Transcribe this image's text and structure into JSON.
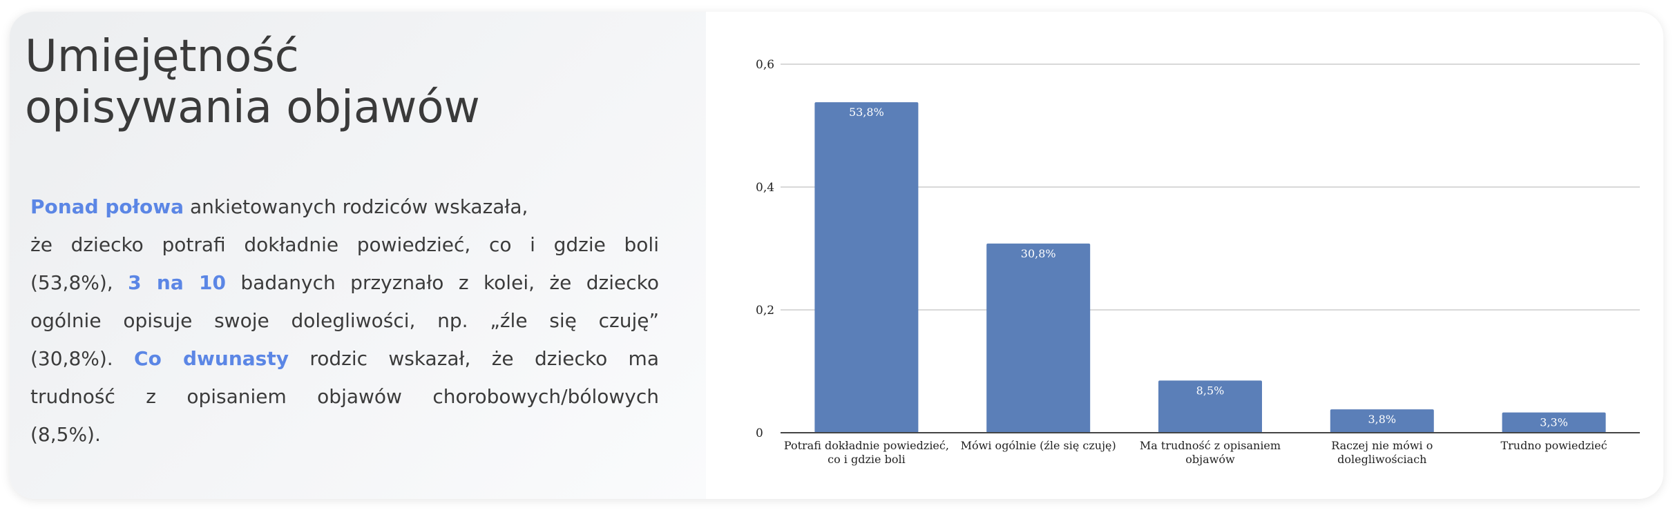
{
  "heading": {
    "line1": "Umiejętność",
    "line2": "opisywania objawów"
  },
  "description": {
    "l1": {
      "hl": "Ponad połowa",
      "rest": " ankietowanych rodziców wskazała,"
    },
    "l2": "że dziecko potrafi dokładnie powiedzieć, co i gdzie boli",
    "l3": {
      "pre": "(53,8%), ",
      "hl": "3 na 10",
      "rest": " badanych przyznało z kolei, że dziecko"
    },
    "l4": "ogólnie opisuje swoje dolegliwości, np. „źle się czuję”",
    "l5": {
      "pre": "(30,8%). ",
      "hl": "Co dwunasty",
      "rest": " rodzic wskazał, że dziecko ma"
    },
    "l6": "trudność z opisaniem objawów chorobowych/bólowych",
    "l7": "(8,5%)."
  },
  "colors": {
    "accent": "#5b86e5",
    "bar": "#5b7fb8",
    "grid": "#cccccc"
  },
  "chart_data": {
    "type": "bar",
    "categories": [
      [
        "Potrafi dokładnie powiedzieć,",
        "co i gdzie boli"
      ],
      [
        "Mówi ogólnie (źle się czuję)"
      ],
      [
        "Ma trudność z opisaniem",
        "objawów"
      ],
      [
        "Raczej nie mówi o",
        "dolegliwościach"
      ],
      [
        "Trudno powiedzieć"
      ]
    ],
    "values": [
      0.538,
      0.308,
      0.085,
      0.038,
      0.033
    ],
    "data_labels": [
      "53,8%",
      "30,8%",
      "8,5%",
      "3,8%",
      "3,3%"
    ],
    "yticks": [
      "0",
      "0,2",
      "0,4",
      "0,6"
    ],
    "ytick_values": [
      0,
      0.2,
      0.4,
      0.6
    ],
    "ylim": [
      0,
      0.6
    ],
    "grid": true,
    "legend": "none"
  }
}
